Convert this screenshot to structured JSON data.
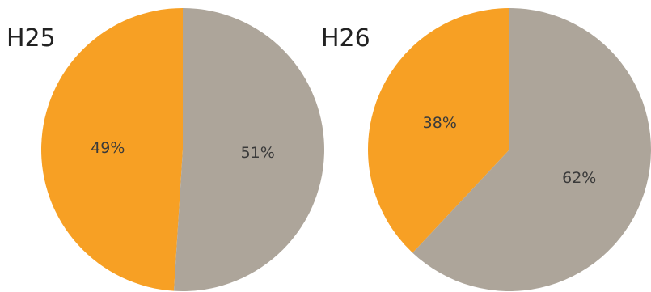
{
  "chart_data": [
    {
      "type": "pie",
      "title": "H25",
      "slices": [
        {
          "value": 49,
          "label": "49%",
          "color": "#F7A024"
        },
        {
          "value": 51,
          "label": "51%",
          "color": "#ADA59A"
        }
      ]
    },
    {
      "type": "pie",
      "title": "H26",
      "slices": [
        {
          "value": 38,
          "label": "38%",
          "color": "#F7A024"
        },
        {
          "value": 62,
          "label": "62%",
          "color": "#ADA59A"
        }
      ]
    }
  ]
}
